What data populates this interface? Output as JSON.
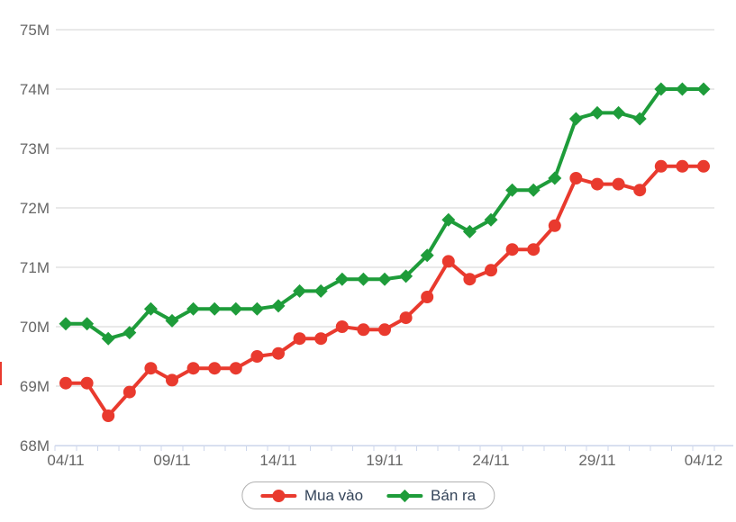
{
  "chart_data": {
    "type": "line",
    "title": "",
    "xlabel": "",
    "ylabel": "",
    "x": [
      "04/11",
      "05/11",
      "06/11",
      "07/11",
      "08/11",
      "09/11",
      "10/11",
      "11/11",
      "12/11",
      "13/11",
      "14/11",
      "15/11",
      "16/11",
      "17/11",
      "18/11",
      "19/11",
      "20/11",
      "21/11",
      "22/11",
      "23/11",
      "24/11",
      "25/11",
      "26/11",
      "27/11",
      "28/11",
      "29/11",
      "30/11",
      "01/12",
      "02/12",
      "03/12",
      "04/12"
    ],
    "x_labeled_indices": [
      0,
      5,
      10,
      15,
      20,
      25,
      30
    ],
    "x_labeled_ticks": [
      "04/11",
      "09/11",
      "14/11",
      "19/11",
      "24/11",
      "29/11",
      "04/12"
    ],
    "series": [
      {
        "name": "Mua vào",
        "marker": "circle",
        "color": "#e93a2e",
        "values": [
          69.05,
          69.05,
          68.5,
          68.9,
          69.3,
          69.1,
          69.3,
          69.3,
          69.3,
          69.5,
          69.55,
          69.8,
          69.8,
          70.0,
          69.95,
          69.95,
          70.15,
          70.5,
          71.1,
          70.8,
          70.95,
          71.3,
          71.3,
          71.7,
          72.5,
          72.4,
          72.4,
          72.3,
          72.7,
          72.7,
          72.7
        ]
      },
      {
        "name": "Bán ra",
        "marker": "diamond",
        "color": "#1e9c3a",
        "values": [
          70.05,
          70.05,
          69.8,
          69.9,
          70.3,
          70.1,
          70.3,
          70.3,
          70.3,
          70.3,
          70.35,
          70.6,
          70.6,
          70.8,
          70.8,
          70.8,
          70.85,
          71.2,
          71.8,
          71.6,
          71.8,
          72.3,
          72.3,
          72.5,
          73.5,
          73.6,
          73.6,
          73.5,
          74.0,
          74.0,
          74.0
        ]
      }
    ],
    "ylim": [
      68,
      75
    ],
    "y_ticks": [
      {
        "v": 68,
        "label": "68M"
      },
      {
        "v": 69,
        "label": "69M"
      },
      {
        "v": 70,
        "label": "70M"
      },
      {
        "v": 71,
        "label": "71M"
      },
      {
        "v": 72,
        "label": "72M"
      },
      {
        "v": 73,
        "label": "73M"
      },
      {
        "v": 74,
        "label": "74M"
      },
      {
        "v": 75,
        "label": "75M"
      }
    ],
    "grid": "horizontal",
    "legend_position": "bottom-center"
  },
  "colors": {
    "background": "#ffffff",
    "grid_line": "#d3d3d3",
    "axis_line": "#ccd6eb",
    "tick_mark": "#ccd6eb",
    "axis_label_text": "#666666",
    "legend_text": "#35455a",
    "legend_border": "#b0b0b0",
    "buy_series": "#e93a2e",
    "sell_series": "#1e9c3a"
  }
}
